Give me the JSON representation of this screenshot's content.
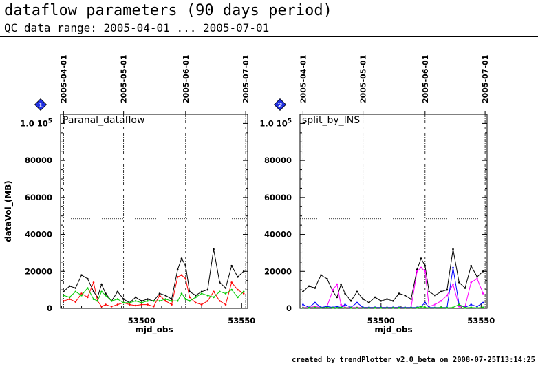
{
  "page": {
    "title": "dataflow parameters (90 days period)",
    "subtitle": "QC data range: 2005-04-01 ... 2005-07-01",
    "footer": "created by trendPlotter v2.0_beta on 2008-07-25T13:14:25"
  },
  "chart_data": [
    {
      "type": "line",
      "panel_number": "1",
      "panel_label": "Paranal_dataflow",
      "xlabel": "mjd_obs",
      "ylabel": "dataVol_(MB)",
      "xlim": [
        53459.5,
        53553
      ],
      "ylim": [
        0,
        105000
      ],
      "x_ticks": [
        53500,
        53550
      ],
      "y_ticks": [
        0,
        20000,
        40000,
        60000,
        80000
      ],
      "y_top_tick_label": "1.0 10",
      "y_top_tick_exponent": "5",
      "date_markers": [
        {
          "label": "2005-04-01",
          "x": 53461
        },
        {
          "label": "2005-05-01",
          "x": 53491
        },
        {
          "label": "2005-06-01",
          "x": 53522
        },
        {
          "label": "2005-07-01",
          "x": 53552
        }
      ],
      "reference_lines": [
        {
          "y": 48500,
          "style": "dotted"
        },
        {
          "y": 11000,
          "style": "solid"
        }
      ],
      "series": [
        {
          "color": "#000000",
          "x": [
            53461,
            53464,
            53467,
            53470,
            53473,
            53476,
            53478,
            53480,
            53482,
            53485,
            53488,
            53491,
            53494,
            53497,
            53500,
            53503,
            53506,
            53509,
            53512,
            53515,
            53518,
            53520,
            53522,
            53524,
            53527,
            53530,
            53533,
            53536,
            53539,
            53542,
            53545,
            53548,
            53551
          ],
          "values": [
            9000,
            12000,
            11000,
            18000,
            16000,
            9000,
            6000,
            13000,
            8000,
            4000,
            9000,
            5000,
            3000,
            6000,
            4000,
            5000,
            4000,
            8000,
            7000,
            5000,
            21000,
            27000,
            23000,
            9000,
            7000,
            9000,
            10000,
            32000,
            14000,
            11000,
            23000,
            17000,
            20000
          ]
        },
        {
          "color": "#ff0000",
          "x": [
            53461,
            53464,
            53467,
            53470,
            53473,
            53476,
            53478,
            53480,
            53482,
            53485,
            53488,
            53491,
            53494,
            53497,
            53500,
            53503,
            53506,
            53509,
            53512,
            53515,
            53518,
            53520,
            53522,
            53524,
            53527,
            53530,
            53533,
            53536,
            53539,
            53542,
            53545,
            53548,
            53551
          ],
          "values": [
            4000,
            5000,
            3500,
            8000,
            6000,
            14000,
            4000,
            1000,
            2000,
            1000,
            2000,
            3000,
            2000,
            1500,
            2000,
            2000,
            1000,
            7000,
            4000,
            2000,
            17000,
            18000,
            16000,
            6000,
            3000,
            2000,
            4000,
            9000,
            4000,
            2000,
            14000,
            10000,
            8000
          ]
        },
        {
          "color": "#00cc00",
          "x": [
            53461,
            53464,
            53467,
            53470,
            53473,
            53476,
            53478,
            53480,
            53482,
            53485,
            53488,
            53491,
            53494,
            53497,
            53500,
            53503,
            53506,
            53509,
            53512,
            53515,
            53518,
            53520,
            53522,
            53524,
            53527,
            53530,
            53533,
            53536,
            53539,
            53542,
            53545,
            53548,
            53551
          ],
          "values": [
            7000,
            6000,
            9000,
            7000,
            11000,
            5000,
            4000,
            9000,
            7000,
            4000,
            5000,
            3000,
            3000,
            4000,
            3000,
            4000,
            4000,
            4000,
            5000,
            4000,
            4000,
            8000,
            5000,
            4000,
            6000,
            8000,
            7000,
            6000,
            9000,
            8000,
            10000,
            6000,
            9000
          ]
        }
      ]
    },
    {
      "type": "line",
      "panel_number": "2",
      "panel_label": "split_by_INS",
      "xlabel": "mjd_obs",
      "ylabel": "",
      "xlim": [
        53459.5,
        53553
      ],
      "ylim": [
        0,
        105000
      ],
      "x_ticks": [
        53500,
        53550
      ],
      "y_ticks": [
        0,
        20000,
        40000,
        60000,
        80000
      ],
      "y_top_tick_label": "1.0 10",
      "y_top_tick_exponent": "5",
      "date_markers": [
        {
          "label": "2005-04-01",
          "x": 53461
        },
        {
          "label": "2005-05-01",
          "x": 53491
        },
        {
          "label": "2005-06-01",
          "x": 53522
        },
        {
          "label": "2005-07-01",
          "x": 53552
        }
      ],
      "reference_lines": [
        {
          "y": 48500,
          "style": "dotted"
        },
        {
          "y": 11000,
          "style": "solid"
        }
      ],
      "series": [
        {
          "color": "#000000",
          "x": [
            53461,
            53464,
            53467,
            53470,
            53473,
            53476,
            53478,
            53480,
            53482,
            53485,
            53488,
            53491,
            53494,
            53497,
            53500,
            53503,
            53506,
            53509,
            53512,
            53515,
            53518,
            53520,
            53522,
            53524,
            53527,
            53530,
            53533,
            53536,
            53539,
            53542,
            53545,
            53548,
            53551
          ],
          "values": [
            9000,
            12000,
            11000,
            18000,
            16000,
            9000,
            6000,
            13000,
            8000,
            4000,
            9000,
            5000,
            3000,
            6000,
            4000,
            5000,
            4000,
            8000,
            7000,
            5000,
            21000,
            27000,
            23000,
            9000,
            7000,
            9000,
            10000,
            32000,
            14000,
            11000,
            23000,
            17000,
            20000
          ]
        },
        {
          "color": "#ff00ff",
          "x": [
            53461,
            53464,
            53467,
            53470,
            53473,
            53476,
            53478,
            53480,
            53482,
            53485,
            53488,
            53491,
            53494,
            53497,
            53500,
            53503,
            53506,
            53509,
            53512,
            53515,
            53518,
            53520,
            53522,
            53524,
            53527,
            53530,
            53533,
            53536,
            53539,
            53542,
            53545,
            53548,
            53551
          ],
          "values": [
            500,
            500,
            1000,
            500,
            1000,
            10000,
            13000,
            2000,
            500,
            500,
            500,
            500,
            500,
            500,
            500,
            500,
            500,
            500,
            500,
            500,
            20000,
            22000,
            20000,
            1000,
            2000,
            4000,
            7000,
            13000,
            1000,
            1000,
            14000,
            16000,
            8000
          ]
        },
        {
          "color": "#0000ff",
          "x": [
            53461,
            53464,
            53467,
            53470,
            53473,
            53476,
            53478,
            53480,
            53482,
            53485,
            53488,
            53491,
            53494,
            53497,
            53500,
            53503,
            53506,
            53509,
            53512,
            53515,
            53518,
            53520,
            53522,
            53524,
            53527,
            53530,
            53533,
            53536,
            53539,
            53542,
            53545,
            53548,
            53551
          ],
          "values": [
            2000,
            500,
            3000,
            500,
            1000,
            500,
            1000,
            500,
            2000,
            500,
            3000,
            500,
            500,
            500,
            500,
            500,
            500,
            500,
            500,
            500,
            500,
            1000,
            3000,
            500,
            500,
            500,
            500,
            22000,
            2000,
            500,
            2000,
            1000,
            3000
          ]
        },
        {
          "color": "#00cc00",
          "x": [
            53461,
            53464,
            53467,
            53470,
            53473,
            53476,
            53478,
            53480,
            53482,
            53485,
            53488,
            53491,
            53494,
            53497,
            53500,
            53503,
            53506,
            53509,
            53512,
            53515,
            53518,
            53520,
            53522,
            53524,
            53527,
            53530,
            53533,
            53536,
            53539,
            53542,
            53545,
            53548,
            53551
          ],
          "values": [
            300,
            300,
            500,
            300,
            500,
            300,
            300,
            500,
            300,
            300,
            300,
            300,
            300,
            300,
            300,
            300,
            300,
            300,
            300,
            300,
            300,
            1000,
            500,
            300,
            300,
            500,
            300,
            500,
            2000,
            300,
            500,
            300,
            500
          ]
        }
      ]
    }
  ]
}
